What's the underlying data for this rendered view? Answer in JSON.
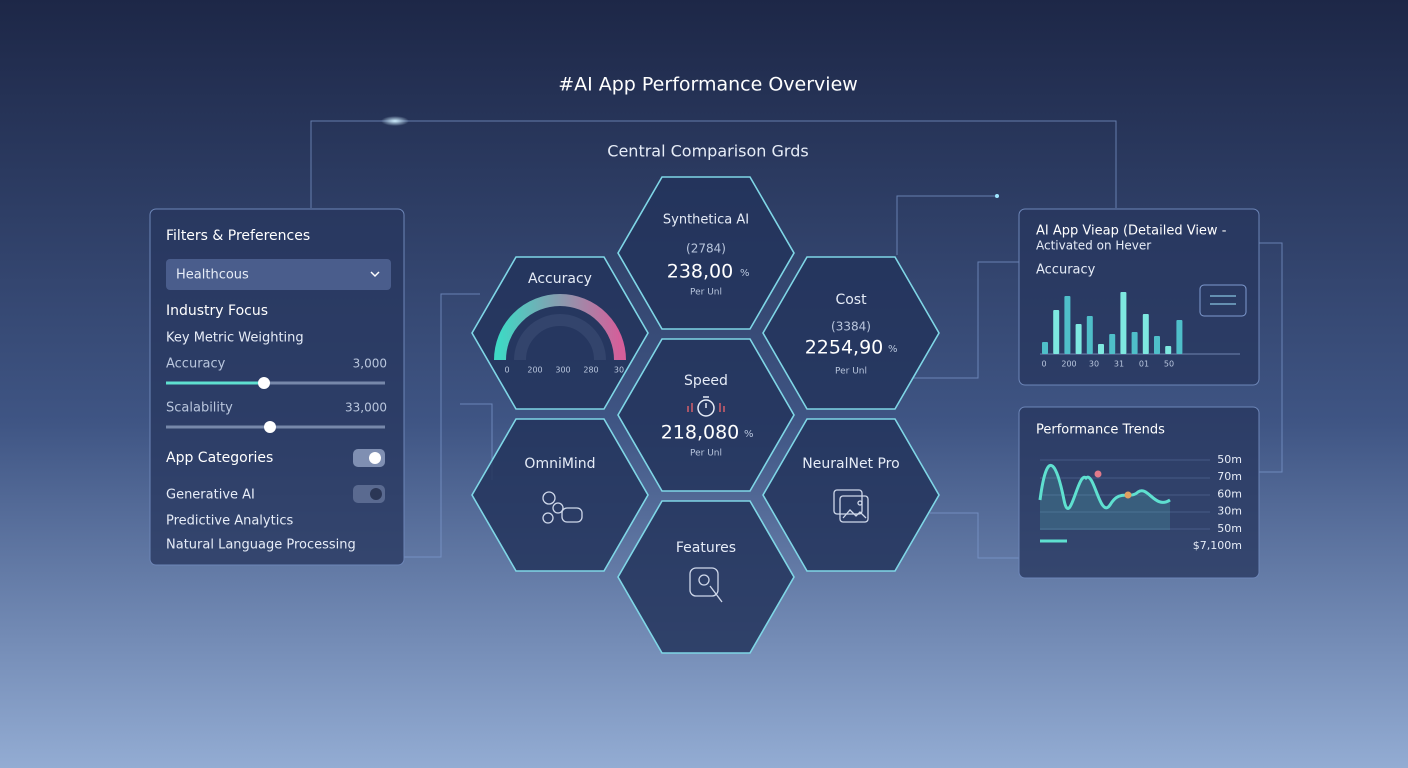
{
  "header": {
    "title": "#AI App Performance Overview",
    "subtitle": "Central Comparison Grds"
  },
  "filters": {
    "title": "Filters & Preferences",
    "dropdown": "Healthcous",
    "industry_focus": "Industry Focus",
    "weighting": "Key Metric Weighting",
    "sliders": [
      {
        "label": "Accuracy",
        "value": "3,000"
      },
      {
        "label": "Scalability",
        "value": "33,000"
      }
    ],
    "app_categories": "App Categories",
    "generative": "Generative AI",
    "predictive": "Predictive Analytics",
    "nlp": "Natural Language Processing"
  },
  "hexes": {
    "accuracy": {
      "title": "Accuracy",
      "scale": [
        "0",
        "200",
        "300",
        "280",
        "30"
      ]
    },
    "synthetica": {
      "title": "Synthetica AI",
      "count": "(2784)",
      "value": "238,00",
      "unit": "%",
      "per": "Per Unl"
    },
    "cost": {
      "title": "Cost",
      "count": "(3384)",
      "value": "2254,90",
      "unit": "%",
      "per": "Per Unl"
    },
    "speed": {
      "title": "Speed",
      "value": "218,080",
      "unit": "%",
      "per": "Per Unl"
    },
    "omnimind": {
      "title": "OmniMind"
    },
    "neuralnet": {
      "title": "NeuralNet Pro"
    },
    "features": {
      "title": "Features"
    }
  },
  "detail": {
    "title_1": "AI App Vieap (Detailed View -",
    "title_2": "Activated on Hever",
    "metric": "Accuracy",
    "bars": [
      12,
      44,
      58,
      30,
      38,
      10,
      20,
      62,
      22,
      40,
      18,
      8,
      34
    ],
    "ylim": [
      0,
      70
    ],
    "x_labels": [
      "0",
      "200",
      "30",
      "31",
      "01",
      "50"
    ]
  },
  "trends": {
    "title": "Performance Trends",
    "labels": [
      "50m",
      "70m",
      "60m",
      "30m",
      "50m",
      "$7,100m"
    ]
  }
}
